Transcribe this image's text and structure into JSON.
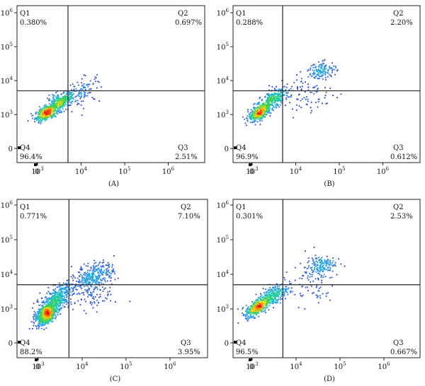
{
  "figure": {
    "panel_labels": [
      "(A)",
      "(B)",
      "(C)",
      "(D)"
    ]
  },
  "chart_data": [
    {
      "type": "scatter",
      "panel": "(A)",
      "x_ticks": [
        "0",
        "10^3",
        "10^4",
        "10^5",
        "10^6"
      ],
      "y_ticks": [
        "0",
        "10^3",
        "10^4",
        "10^5",
        "10^6"
      ],
      "gate": {
        "x": 5000,
        "y": 5000
      },
      "quadrants": [
        {
          "name": "Q1",
          "percent": "0.380%"
        },
        {
          "name": "Q2",
          "percent": "0.697%"
        },
        {
          "name": "Q3",
          "percent": "2.51%"
        },
        {
          "name": "Q4",
          "percent": "96.4%"
        }
      ],
      "clusters": [
        {
          "x": 1600,
          "y": 1100,
          "n": 380,
          "sx": 0.13,
          "sy": 0.12,
          "rho": 0.55
        },
        {
          "x": 3300,
          "y": 2300,
          "n": 320,
          "sx": 0.17,
          "sy": 0.15,
          "rho": 0.6
        },
        {
          "x": 12000,
          "y": 5000,
          "n": 90,
          "sx": 0.18,
          "sy": 0.22,
          "rho": 0.3
        }
      ]
    },
    {
      "type": "scatter",
      "panel": "(B)",
      "x_ticks": [
        "0",
        "10^3",
        "10^4",
        "10^5",
        "10^6"
      ],
      "y_ticks": [
        "0",
        "10^3",
        "10^4",
        "10^5",
        "10^6"
      ],
      "gate": {
        "x": 5000,
        "y": 5000
      },
      "quadrants": [
        {
          "name": "Q1",
          "percent": "0.288%"
        },
        {
          "name": "Q2",
          "percent": "2.20%"
        },
        {
          "name": "Q3",
          "percent": "0.612%"
        },
        {
          "name": "Q4",
          "percent": "96.9%"
        }
      ],
      "clusters": [
        {
          "x": 1500,
          "y": 1200,
          "n": 420,
          "sx": 0.13,
          "sy": 0.14,
          "rho": 0.6
        },
        {
          "x": 3200,
          "y": 2800,
          "n": 260,
          "sx": 0.15,
          "sy": 0.16,
          "rho": 0.5
        },
        {
          "x": 40000,
          "y": 20000,
          "n": 130,
          "sx": 0.16,
          "sy": 0.12,
          "rho": 0.2
        },
        {
          "x": 20000,
          "y": 4000,
          "n": 90,
          "sx": 0.3,
          "sy": 0.28,
          "rho": 0.1
        }
      ]
    },
    {
      "type": "scatter",
      "panel": "(C)",
      "x_ticks": [
        "0",
        "10^3",
        "10^4",
        "10^5",
        "10^6"
      ],
      "y_ticks": [
        "0",
        "10^3",
        "10^4",
        "10^5",
        "10^6"
      ],
      "gate": {
        "x": 5000,
        "y": 5000
      },
      "quadrants": [
        {
          "name": "Q1",
          "percent": "0.771%"
        },
        {
          "name": "Q2",
          "percent": "7.10%"
        },
        {
          "name": "Q3",
          "percent": "3.95%"
        },
        {
          "name": "Q4",
          "percent": "88.2%"
        }
      ],
      "clusters": [
        {
          "x": 1500,
          "y": 600,
          "n": 360,
          "sx": 0.12,
          "sy": 0.14,
          "rho": 0.55
        },
        {
          "x": 1600,
          "y": 900,
          "n": 300,
          "sx": 0.13,
          "sy": 0.15,
          "rho": 0.55
        },
        {
          "x": 2600,
          "y": 2000,
          "n": 380,
          "sx": 0.18,
          "sy": 0.2,
          "rho": 0.55
        },
        {
          "x": 20000,
          "y": 10000,
          "n": 280,
          "sx": 0.22,
          "sy": 0.18,
          "rho": 0.4
        },
        {
          "x": 15000,
          "y": 3000,
          "n": 140,
          "sx": 0.3,
          "sy": 0.25,
          "rho": 0.1
        }
      ]
    },
    {
      "type": "scatter",
      "panel": "(D)",
      "x_ticks": [
        "0",
        "10^3",
        "10^4",
        "10^5",
        "10^6"
      ],
      "y_ticks": [
        "0",
        "10^3",
        "10^4",
        "10^5",
        "10^6"
      ],
      "gate": {
        "x": 5000,
        "y": 5000
      },
      "quadrants": [
        {
          "name": "Q1",
          "percent": "0.301%"
        },
        {
          "name": "Q2",
          "percent": "2.53%"
        },
        {
          "name": "Q3",
          "percent": "0.667%"
        },
        {
          "name": "Q4",
          "percent": "96.5%"
        }
      ],
      "clusters": [
        {
          "x": 1300,
          "y": 1100,
          "n": 420,
          "sx": 0.13,
          "sy": 0.14,
          "rho": 0.6
        },
        {
          "x": 3000,
          "y": 2500,
          "n": 250,
          "sx": 0.16,
          "sy": 0.16,
          "rho": 0.5
        },
        {
          "x": 35000,
          "y": 18000,
          "n": 150,
          "sx": 0.17,
          "sy": 0.14,
          "rho": 0.25
        },
        {
          "x": 20000,
          "y": 5000,
          "n": 80,
          "sx": 0.3,
          "sy": 0.3,
          "rho": 0.1
        }
      ]
    }
  ]
}
